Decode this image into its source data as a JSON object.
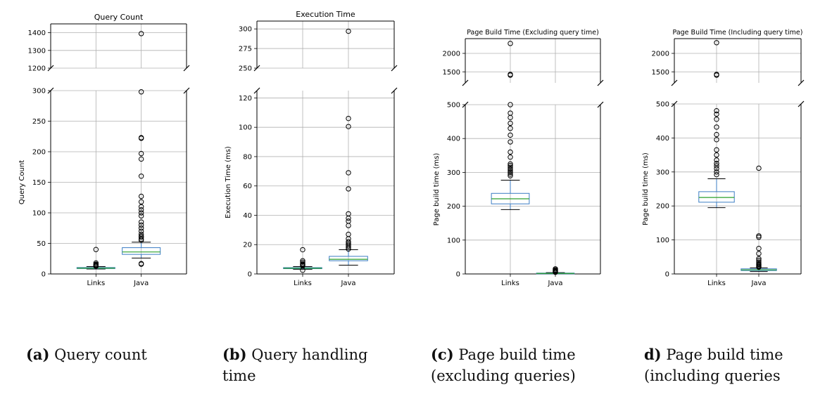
{
  "chart_data": [
    {
      "type": "boxplot",
      "title": "Query Count",
      "ylabel": "Query Count",
      "categories": [
        "Links",
        "Java"
      ],
      "broken_axis": true,
      "upper_ylim": [
        1200,
        1450
      ],
      "upper_ticks": [
        1200,
        1300,
        1400
      ],
      "lower_ylim": [
        0,
        300
      ],
      "lower_ticks": [
        0,
        50,
        100,
        150,
        200,
        250,
        300
      ],
      "boxes": [
        {
          "name": "Links",
          "whislo": 8,
          "q1": 8.8,
          "med": 9.5,
          "q3": 10.5,
          "whishi": 12,
          "fliers": [
            12.5,
            13,
            14,
            15,
            16,
            18,
            40
          ]
        },
        {
          "name": "Java",
          "whislo": 26,
          "q1": 32,
          "med": 36,
          "q3": 43,
          "whishi": 52,
          "fliers": [
            16,
            17,
            55,
            57,
            60,
            62,
            65,
            70,
            75,
            80,
            85,
            95,
            100,
            105,
            110,
            118,
            127,
            160,
            188,
            197,
            222,
            223,
            298,
            1395
          ]
        }
      ],
      "caption_tag": "(a)",
      "caption_text": "Query count"
    },
    {
      "type": "boxplot",
      "title": "Execution Time",
      "ylabel": "Execution Time (ms)",
      "categories": [
        "Links",
        "Java"
      ],
      "broken_axis": true,
      "upper_ylim": [
        250,
        310
      ],
      "upper_ticks": [
        250,
        275,
        300
      ],
      "lower_ylim": [
        0,
        125
      ],
      "lower_ticks": [
        0,
        20,
        40,
        60,
        80,
        100,
        120
      ],
      "boxes": [
        {
          "name": "Links",
          "whislo": 3.2,
          "q1": 3.6,
          "med": 3.9,
          "q3": 4.3,
          "whishi": 5,
          "fliers": [
            2.5,
            5.5,
            6,
            6.5,
            7,
            8,
            9,
            16.5
          ]
        },
        {
          "name": "Java",
          "whislo": 6,
          "q1": 9,
          "med": 10,
          "q3": 12,
          "whishi": 16.5,
          "fliers": [
            17,
            18,
            19,
            20,
            21,
            22,
            24,
            27,
            33,
            36,
            38,
            41,
            58,
            69,
            100.5,
            106,
            297
          ]
        }
      ],
      "caption_tag": "(b)",
      "caption_text": "Query handling time"
    },
    {
      "type": "boxplot",
      "title": "Page Build Time (Excluding query time)",
      "ylabel": "Page build time (ms)",
      "categories": [
        "Links",
        "Java"
      ],
      "broken_axis": true,
      "upper_ylim": [
        1200,
        2400
      ],
      "upper_ticks": [
        1500,
        2000
      ],
      "lower_ylim": [
        0,
        500
      ],
      "lower_ticks": [
        0,
        100,
        200,
        300,
        400,
        500
      ],
      "boxes": [
        {
          "name": "Links",
          "whislo": 190,
          "q1": 207,
          "med": 222,
          "q3": 238,
          "whishi": 277,
          "fliers": [
            290,
            295,
            300,
            305,
            310,
            315,
            320,
            325,
            345,
            360,
            390,
            410,
            430,
            445,
            462,
            475,
            500,
            1410,
            1430,
            2270
          ]
        },
        {
          "name": "Java",
          "whislo": 0,
          "q1": 0.8,
          "med": 1.5,
          "q3": 2.5,
          "whishi": 4,
          "fliers": [
            5,
            6,
            8,
            10,
            12,
            15
          ]
        }
      ],
      "caption_tag": "(c)",
      "caption_text": "Page build time (excluding queries)"
    },
    {
      "type": "boxplot",
      "title": "Page Build Time (Including query time)",
      "ylabel": "Page build time (ms)",
      "categories": [
        "Links",
        "Java"
      ],
      "broken_axis": true,
      "upper_ylim": [
        1200,
        2400
      ],
      "upper_ticks": [
        1500,
        2000
      ],
      "lower_ylim": [
        0,
        500
      ],
      "lower_ticks": [
        0,
        100,
        200,
        300,
        400,
        500
      ],
      "boxes": [
        {
          "name": "Links",
          "whislo": 195,
          "q1": 211,
          "med": 225,
          "q3": 242,
          "whishi": 280,
          "fliers": [
            292,
            300,
            310,
            318,
            325,
            335,
            350,
            365,
            395,
            410,
            432,
            455,
            470,
            480,
            1410,
            1430,
            2290
          ]
        },
        {
          "name": "Java",
          "whislo": 7,
          "q1": 10,
          "med": 12,
          "q3": 15,
          "whishi": 18,
          "fliers": [
            20,
            22,
            25,
            28,
            30,
            35,
            40,
            45,
            60,
            75,
            108,
            112,
            311
          ]
        }
      ],
      "caption_tag": "d)",
      "caption_text": "Page build time (including queries"
    }
  ],
  "colors": {
    "box": "#3b7dc4",
    "median": "#2ca02c",
    "whisker": "#000000",
    "flier": "#000000",
    "grid": "#b0b0b0"
  }
}
